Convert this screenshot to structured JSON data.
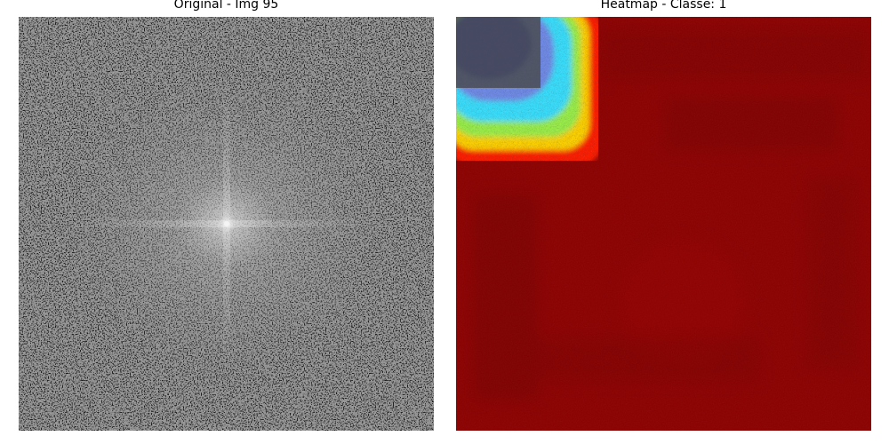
{
  "panels": [
    {
      "title": "Original - Img 95",
      "image": "grayscale-fft-spectrum",
      "colors": {
        "base": "#8a8a8a",
        "center_glow": "#e4e4e4"
      }
    },
    {
      "title": "Heatmap - Classe: 1",
      "image": "jet-colormap-heatmap",
      "colors": {
        "base": "#8b0000",
        "dark_band": "#7d0000",
        "red": "#ff1a00",
        "yellow": "#ffe100",
        "cyan": "#38e0ff",
        "blue": "#3b4fd1",
        "noise_light": "#f5f5f5",
        "noise_dark": "#111111"
      }
    }
  ]
}
